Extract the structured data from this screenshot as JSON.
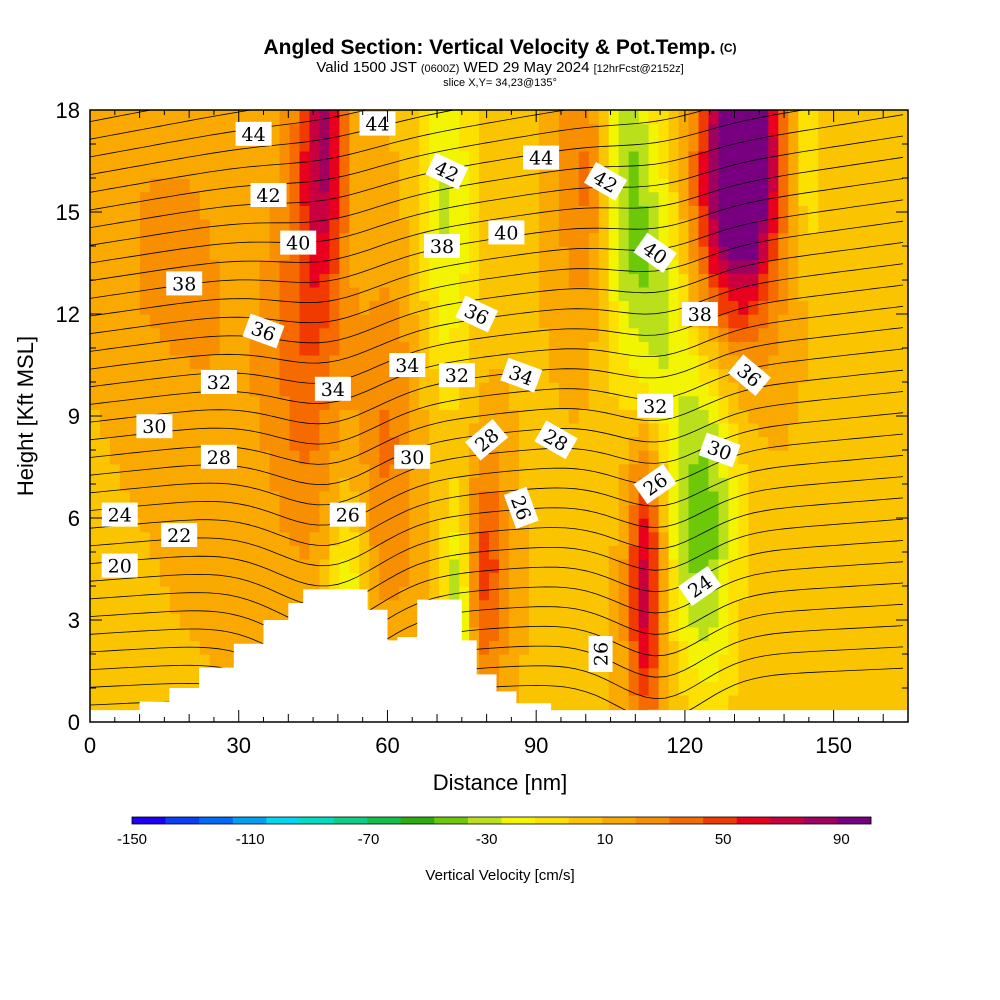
{
  "header": {
    "title": "Angled Section: Vertical Velocity & Pot.Temp.",
    "copyright": "(C)",
    "valid_prefix": "Valid 1500 JST",
    "valid_utc": "(0600Z)",
    "valid_date": "WED 29 May 2024",
    "forecast": "[12hrFcst@2152z]",
    "slice": "slice X,Y= 34,23@135°"
  },
  "colorbar": {
    "title": "Vertical Velocity [cm/s]",
    "tick_labels": [
      "-150",
      "-110",
      "-70",
      "-30",
      "10",
      "50",
      "90"
    ],
    "colors": [
      "#1c00f6",
      "#0a3ef7",
      "#0069f5",
      "#00a0f2",
      "#00d6f1",
      "#00dcc4",
      "#0fcf86",
      "#14be4a",
      "#2dac12",
      "#6ec80a",
      "#b9e01a",
      "#f3f500",
      "#fce000",
      "#fac400",
      "#f9a900",
      "#f78f00",
      "#f56b00",
      "#f03a00",
      "#e8001e",
      "#c80040",
      "#a00060",
      "#780080"
    ]
  },
  "chart_data": {
    "type": "heatmap",
    "title": "Angled Section: Vertical Velocity & Pot.Temp.",
    "xlabel": "Distance [nm]",
    "ylabel": "Height [Kft MSL]",
    "xlim": [
      0,
      165
    ],
    "ylim": [
      0,
      18
    ],
    "x_ticks": [
      0,
      30,
      60,
      90,
      120,
      150
    ],
    "y_ticks": [
      0,
      3,
      6,
      9,
      12,
      15,
      18
    ],
    "colorbar_range": [
      -150,
      100
    ],
    "terrain_profile": [
      {
        "x": 0,
        "h": 0.35
      },
      {
        "x": 10,
        "h": 0.6
      },
      {
        "x": 16,
        "h": 1.0
      },
      {
        "x": 22,
        "h": 1.6
      },
      {
        "x": 29,
        "h": 2.3
      },
      {
        "x": 35,
        "h": 3.0
      },
      {
        "x": 40,
        "h": 3.5
      },
      {
        "x": 43,
        "h": 3.9
      },
      {
        "x": 52,
        "h": 3.9
      },
      {
        "x": 56,
        "h": 3.3
      },
      {
        "x": 60,
        "h": 2.4
      },
      {
        "x": 62,
        "h": 2.5
      },
      {
        "x": 66,
        "h": 3.6
      },
      {
        "x": 71,
        "h": 3.6
      },
      {
        "x": 75,
        "h": 2.4
      },
      {
        "x": 78,
        "h": 1.4
      },
      {
        "x": 82,
        "h": 0.9
      },
      {
        "x": 86,
        "h": 0.55
      },
      {
        "x": 93,
        "h": 0.35
      },
      {
        "x": 165,
        "h": 0.35
      }
    ],
    "velocity_features": [
      {
        "x": 47,
        "y": 17.5,
        "sx": 3,
        "sy": 3,
        "w": 60
      },
      {
        "x": 44,
        "y": 12,
        "sx": 5,
        "sy": 5,
        "w": 30
      },
      {
        "x": 72,
        "y": 15,
        "sx": 4,
        "sy": 4,
        "w": -35
      },
      {
        "x": 60,
        "y": 8,
        "sx": 5,
        "sy": 4,
        "w": 25
      },
      {
        "x": 52,
        "y": 3.5,
        "sx": 3,
        "sy": 2.5,
        "w": -35
      },
      {
        "x": 74,
        "y": 3.5,
        "sx": 2,
        "sy": 2,
        "w": -45
      },
      {
        "x": 80,
        "y": 4.5,
        "sx": 3,
        "sy": 2.5,
        "w": 40
      },
      {
        "x": 100,
        "y": 16,
        "sx": 4,
        "sy": 3,
        "w": 30
      },
      {
        "x": 108,
        "y": 16,
        "sx": 4,
        "sy": 4,
        "w": -45
      },
      {
        "x": 115,
        "y": 12.5,
        "sx": 4,
        "sy": 3,
        "w": -35
      },
      {
        "x": 132,
        "y": 17,
        "sx": 4,
        "sy": 2,
        "w": 100
      },
      {
        "x": 130,
        "y": 15,
        "sx": 6,
        "sy": 3,
        "w": 75
      },
      {
        "x": 112,
        "y": 4,
        "sx": 2.5,
        "sy": 3,
        "w": 65
      },
      {
        "x": 124,
        "y": 8,
        "sx": 5,
        "sy": 3,
        "w": -40
      },
      {
        "x": 123,
        "y": 4.5,
        "sx": 5,
        "sy": 2,
        "w": -25
      },
      {
        "x": 125,
        "y": 1.5,
        "sx": 4,
        "sy": 1.5,
        "w": -15
      },
      {
        "x": 145,
        "y": 16.5,
        "sx": 2,
        "sy": 2,
        "w": -25
      },
      {
        "x": 15,
        "y": 14,
        "sx": 8,
        "sy": 3,
        "w": 15
      },
      {
        "x": 30,
        "y": 10,
        "sx": 10,
        "sy": 4,
        "w": 10
      }
    ],
    "contour_labels": [
      {
        "text": "44",
        "x": 33,
        "y": 17.3,
        "angle": 0
      },
      {
        "text": "44",
        "x": 58,
        "y": 17.6,
        "angle": 0
      },
      {
        "text": "44",
        "x": 91,
        "y": 16.6,
        "angle": 0
      },
      {
        "text": "42",
        "x": 36,
        "y": 15.5,
        "angle": 0
      },
      {
        "text": "42",
        "x": 72,
        "y": 16.2,
        "angle": 25
      },
      {
        "text": "42",
        "x": 104,
        "y": 15.9,
        "angle": 30
      },
      {
        "text": "40",
        "x": 42,
        "y": 14.1,
        "angle": 0
      },
      {
        "text": "40",
        "x": 84,
        "y": 14.4,
        "angle": 0
      },
      {
        "text": "40",
        "x": 114,
        "y": 13.8,
        "angle": 35
      },
      {
        "text": "38",
        "x": 19,
        "y": 12.9,
        "angle": 0
      },
      {
        "text": "38",
        "x": 71,
        "y": 14.0,
        "angle": 0
      },
      {
        "text": "38",
        "x": 123,
        "y": 12.0,
        "angle": 0
      },
      {
        "text": "36",
        "x": 35,
        "y": 11.5,
        "angle": 20
      },
      {
        "text": "36",
        "x": 78,
        "y": 12.0,
        "angle": 25
      },
      {
        "text": "36",
        "x": 133,
        "y": 10.2,
        "angle": 40
      },
      {
        "text": "34",
        "x": 49,
        "y": 9.8,
        "angle": 0
      },
      {
        "text": "34",
        "x": 64,
        "y": 10.5,
        "angle": 0
      },
      {
        "text": "34",
        "x": 87,
        "y": 10.2,
        "angle": 20
      },
      {
        "text": "32",
        "x": 26,
        "y": 10.0,
        "angle": 0
      },
      {
        "text": "32",
        "x": 74,
        "y": 10.2,
        "angle": 0
      },
      {
        "text": "32",
        "x": 114,
        "y": 9.3,
        "angle": 0
      },
      {
        "text": "30",
        "x": 13,
        "y": 8.7,
        "angle": 0
      },
      {
        "text": "30",
        "x": 65,
        "y": 7.8,
        "angle": 0
      },
      {
        "text": "30",
        "x": 127,
        "y": 8.0,
        "angle": 20
      },
      {
        "text": "28",
        "x": 26,
        "y": 7.8,
        "angle": 0
      },
      {
        "text": "28",
        "x": 80,
        "y": 8.3,
        "angle": -40
      },
      {
        "text": "28",
        "x": 94,
        "y": 8.3,
        "angle": 30
      },
      {
        "text": "26",
        "x": 52,
        "y": 6.1,
        "angle": 0
      },
      {
        "text": "26",
        "x": 87,
        "y": 6.3,
        "angle": 70
      },
      {
        "text": "26",
        "x": 114,
        "y": 7.0,
        "angle": -35
      },
      {
        "text": "26",
        "x": 103,
        "y": 2.0,
        "angle": -90
      },
      {
        "text": "24",
        "x": 6,
        "y": 6.1,
        "angle": 0
      },
      {
        "text": "24",
        "x": 123,
        "y": 4.0,
        "angle": -35
      },
      {
        "text": "22",
        "x": 18,
        "y": 5.5,
        "angle": 0
      },
      {
        "text": "20",
        "x": 6,
        "y": 4.6,
        "angle": 0
      }
    ]
  }
}
